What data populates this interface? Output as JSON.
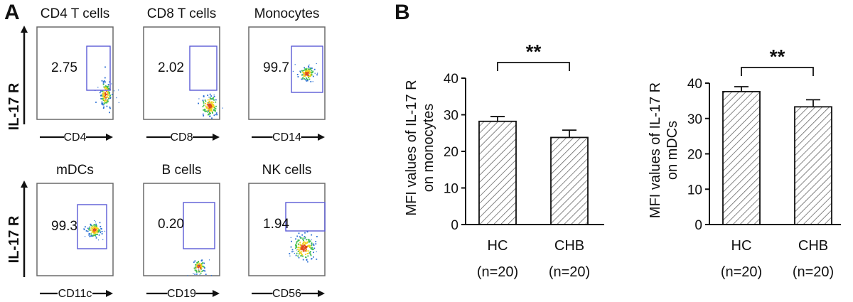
{
  "panel_a": {
    "label": "A",
    "y_axis_label": "IL-17 R",
    "plots": [
      {
        "title": "CD4 T cells",
        "x_label": "CD4",
        "percent": "2.75"
      },
      {
        "title": "CD8 T cells",
        "x_label": "CD8",
        "percent": "2.02"
      },
      {
        "title": "Monocytes",
        "x_label": "CD14",
        "percent": "99.7"
      },
      {
        "title": "mDCs",
        "x_label": "CD11c",
        "percent": "99.3"
      },
      {
        "title": "B cells",
        "x_label": "CD19",
        "percent": "0.20"
      },
      {
        "title": "NK cells",
        "x_label": "CD56",
        "percent": "1.94"
      }
    ]
  },
  "panel_b": {
    "label": "B"
  },
  "chart_data": [
    {
      "type": "bar",
      "categories": [
        "HC",
        "CHB"
      ],
      "category_sublabels": [
        "(n=20)",
        "(n=20)"
      ],
      "values": [
        28.2,
        23.8
      ],
      "errors": [
        1.3,
        2.0
      ],
      "ylabel_line1": "MFI values of IL-17 R",
      "ylabel_line2": "on monocytes",
      "ylim": [
        0,
        40
      ],
      "yticks": [
        "0",
        "10",
        "20",
        "30",
        "40"
      ],
      "significance": "**",
      "bar_fill": "hatched",
      "grid": false
    },
    {
      "type": "bar",
      "categories": [
        "HC",
        "CHB"
      ],
      "category_sublabels": [
        "(n=20)",
        "(n=20)"
      ],
      "values": [
        37.6,
        33.3
      ],
      "errors": [
        1.4,
        2.0
      ],
      "ylabel_line1": "MFI values of IL-17 R",
      "ylabel_line2": "on mDCs",
      "ylim": [
        0,
        40
      ],
      "yticks": [
        "0",
        "10",
        "20",
        "30",
        "40"
      ],
      "significance": "**",
      "bar_fill": "hatched",
      "grid": false
    }
  ]
}
